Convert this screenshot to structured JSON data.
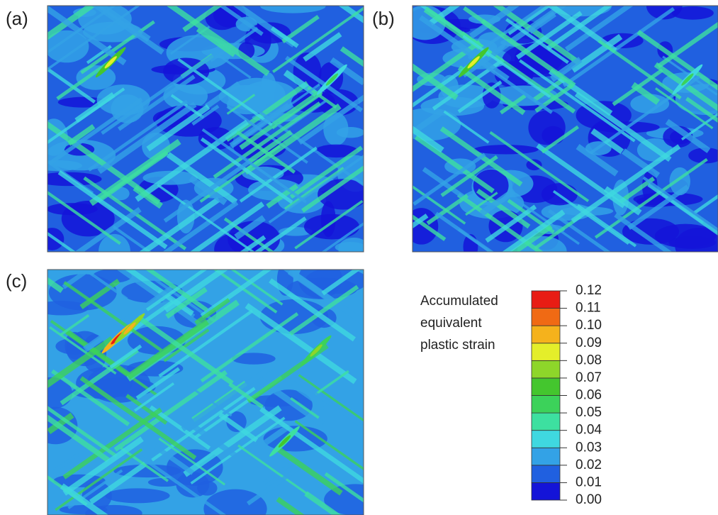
{
  "panels": [
    {
      "label": "(a)"
    },
    {
      "label": "(b)"
    },
    {
      "label": "(c)"
    }
  ],
  "legend": {
    "title": [
      "Accumulated",
      "equivalent",
      "plastic strain"
    ],
    "ticks": [
      {
        "value": 0,
        "label": "0.00"
      },
      0.01,
      0.02,
      0.03,
      0.04,
      0.05,
      0.06,
      0.07,
      0.08,
      0.09,
      {
        "value": 0.1,
        "label": "0.10"
      },
      0.11,
      0.12
    ],
    "colors": [
      "#1414d8",
      "#2060e0",
      "#33a2e6",
      "#3fd8e0",
      "#3de0a0",
      "#3cd25a",
      "#44c62e",
      "#8ed62a",
      "#e4ee2a",
      "#f5b21c",
      "#f06a14",
      "#e81c14"
    ]
  }
}
